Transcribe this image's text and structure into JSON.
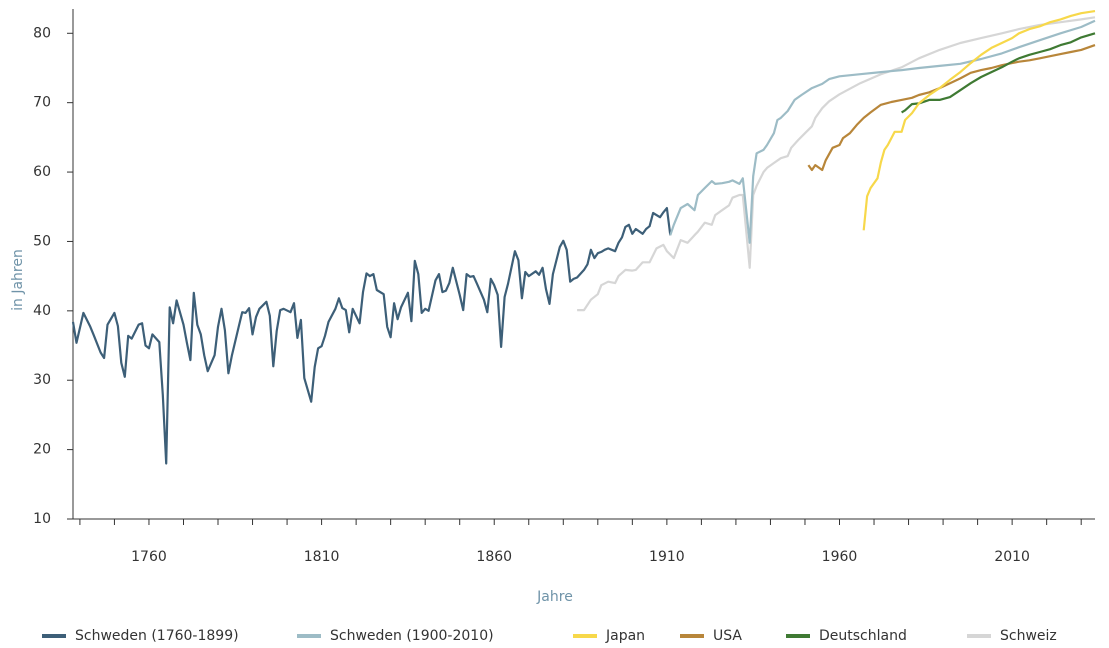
{
  "chart_data": {
    "type": "line",
    "xlabel": "Jahre",
    "ylabel": "in Jahren",
    "xlim": [
      1738,
      2034
    ],
    "ylim": [
      10,
      83.5
    ],
    "xticks": [
      1760,
      1810,
      1860,
      1910,
      1960,
      2010
    ],
    "xticks_minor": [
      1740,
      1750,
      1770,
      1780,
      1790,
      1800,
      1820,
      1830,
      1840,
      1850,
      1870,
      1880,
      1890,
      1900,
      1920,
      1930,
      1940,
      1950,
      1970,
      1980,
      1990,
      2000,
      2020,
      2030
    ],
    "yticks": [
      10,
      20,
      30,
      40,
      50,
      60,
      70,
      80
    ],
    "legend": "bottom",
    "series": [
      {
        "name": "Schweden (1760-1899)",
        "color": "#3d5f78",
        "x": [
          1738,
          1739,
          1741,
          1743,
          1744,
          1746,
          1747,
          1748,
          1750,
          1751,
          1752,
          1753,
          1754,
          1755,
          1757,
          1758,
          1759,
          1760,
          1761,
          1763,
          1764,
          1765,
          1766,
          1767,
          1768,
          1770,
          1771,
          1772,
          1773,
          1774,
          1775,
          1776,
          1777,
          1779,
          1780,
          1781,
          1782,
          1783,
          1784,
          1786,
          1787,
          1788,
          1789,
          1790,
          1791,
          1792,
          1794,
          1795,
          1796,
          1797,
          1798,
          1799,
          1801,
          1802,
          1803,
          1804,
          1805,
          1807,
          1808,
          1809,
          1810,
          1811,
          1812,
          1814,
          1815,
          1816,
          1817,
          1818,
          1819,
          1821,
          1822,
          1823,
          1824,
          1825,
          1826,
          1828,
          1829,
          1830,
          1831,
          1832,
          1833,
          1835,
          1836,
          1837,
          1838,
          1839,
          1840,
          1841,
          1843,
          1844,
          1845,
          1846,
          1847,
          1848,
          1850,
          1851,
          1852,
          1853,
          1854,
          1855,
          1857,
          1858,
          1859,
          1860,
          1861,
          1862,
          1863,
          1864,
          1866,
          1867,
          1868,
          1869,
          1870,
          1872,
          1873,
          1874,
          1875,
          1876,
          1877,
          1879,
          1880,
          1881,
          1882,
          1883,
          1884,
          1886,
          1887,
          1888,
          1889,
          1890,
          1891,
          1892,
          1893,
          1895,
          1896,
          1897,
          1898,
          1899,
          1900,
          1901,
          1903,
          1904,
          1905,
          1906,
          1908,
          1909,
          1910,
          1911
        ],
        "values": [
          38.4,
          35.4,
          39.7,
          37.7,
          36.5,
          34,
          33.2,
          38,
          39.7,
          37.8,
          32.5,
          30.5,
          36.4,
          36,
          38,
          38.2,
          35,
          34.6,
          36.6,
          35.5,
          27.9,
          18,
          40.5,
          38.2,
          41.5,
          38,
          35.4,
          32.9,
          42.6,
          38,
          36.6,
          33.6,
          31.3,
          33.6,
          37.7,
          40.3,
          37.2,
          31,
          33.5,
          37.7,
          39.8,
          39.7,
          40.4,
          36.6,
          39.1,
          40.3,
          41.3,
          39.3,
          32,
          37.1,
          40.1,
          40.3,
          39.8,
          41.1,
          36.1,
          38.7,
          30.3,
          26.9,
          31.9,
          34.6,
          34.9,
          36.4,
          38.4,
          40.3,
          41.8,
          40.4,
          40.1,
          36.9,
          40.3,
          38.2,
          42.7,
          45.4,
          45,
          45.3,
          43,
          42.4,
          37.7,
          36.2,
          41.1,
          38.8,
          40.5,
          42.6,
          38.5,
          47.2,
          45.3,
          39.7,
          40.3,
          40,
          44.4,
          45.3,
          42.7,
          42.9,
          44,
          46.2,
          42.3,
          40.1,
          45.3,
          44.9,
          45,
          43.9,
          41.6,
          39.8,
          44.6,
          43.7,
          42.3,
          34.8,
          42,
          43.9,
          48.6,
          47.3,
          41.8,
          45.6,
          45,
          45.7,
          45.2,
          46.2,
          43.1,
          41,
          45.3,
          49.2,
          50.1,
          48.8,
          44.2,
          44.6,
          44.8,
          45.9,
          46.7,
          48.8,
          47.6,
          48.3,
          48.5,
          48.8,
          49,
          48.6,
          49.8,
          50.6,
          52.1,
          52.4,
          51.1,
          51.8,
          51.1,
          51.8,
          52.2,
          54.1,
          53.5,
          54.2,
          54.8,
          50.9
        ]
      },
      {
        "name": "Schweden (1900-2010)",
        "color": "#9dbcc6",
        "x": [
          1911,
          1912,
          1914,
          1916,
          1918,
          1919,
          1921,
          1923,
          1924,
          1926,
          1928,
          1929,
          1931,
          1932,
          1934,
          1935,
          1936,
          1938,
          1939,
          1941,
          1942,
          1943,
          1945,
          1947,
          1949,
          1952,
          1955,
          1957,
          1960,
          1966,
          1972,
          1978,
          1983,
          1989,
          1995,
          2001,
          2007,
          2012,
          2018,
          2024,
          2030,
          2034
        ],
        "values": [
          50.9,
          52.4,
          54.8,
          55.4,
          54.5,
          56.7,
          57.7,
          58.7,
          58.3,
          58.4,
          58.6,
          58.8,
          58.3,
          59.1,
          49.8,
          59.4,
          62.7,
          63.2,
          63.9,
          65.6,
          67.5,
          67.8,
          68.8,
          70.4,
          71.1,
          72.1,
          72.7,
          73.4,
          73.8,
          74.1,
          74.4,
          74.7,
          75,
          75.3,
          75.6,
          76.3,
          77.1,
          78,
          79,
          80,
          80.9,
          81.8
        ]
      },
      {
        "name": "Japan",
        "color": "#f7d84a",
        "x": [
          1967,
          1968,
          1969,
          1971,
          1972,
          1973,
          1974,
          1976,
          1978,
          1979,
          1981,
          1983,
          1986,
          1989,
          1992,
          1995,
          1998,
          2001,
          2004,
          2007,
          2010,
          2012,
          2015,
          2018,
          2021,
          2024,
          2027,
          2030,
          2034
        ],
        "values": [
          51.6,
          56.5,
          57.7,
          59.1,
          61.4,
          63.2,
          63.9,
          65.8,
          65.8,
          67.5,
          68.5,
          69.9,
          71.1,
          72.1,
          73.3,
          74.4,
          75.7,
          76.9,
          77.9,
          78.6,
          79.3,
          80,
          80.6,
          81,
          81.6,
          82,
          82.5,
          82.9,
          83.2
        ]
      },
      {
        "name": "USA",
        "color": "#b8863a",
        "x": [
          1951,
          1952,
          1953,
          1955,
          1956,
          1958,
          1960,
          1961,
          1963,
          1965,
          1967,
          1969,
          1972,
          1975,
          1978,
          1981,
          1983,
          1986,
          1989,
          1992,
          1995,
          1998,
          2001,
          2004,
          2007,
          2010,
          2012,
          2015,
          2018,
          2021,
          2024,
          2027,
          2030,
          2034
        ],
        "values": [
          61,
          60.3,
          61,
          60.3,
          61.7,
          63.5,
          63.9,
          64.9,
          65.6,
          66.8,
          67.8,
          68.6,
          69.7,
          70.1,
          70.4,
          70.7,
          71.1,
          71.5,
          72.1,
          72.8,
          73.5,
          74.3,
          74.7,
          75,
          75.4,
          75.7,
          75.9,
          76.1,
          76.4,
          76.7,
          77,
          77.3,
          77.6,
          78.3
        ]
      },
      {
        "name": "Deutschland",
        "color": "#3f7a33",
        "x": [
          1978,
          1979,
          1981,
          1983,
          1986,
          1989,
          1992,
          1995,
          1998,
          2001,
          2004,
          2007,
          2010,
          2012,
          2015,
          2018,
          2021,
          2024,
          2027,
          2030,
          2034
        ],
        "values": [
          68.6,
          68.9,
          69.8,
          69.9,
          70.4,
          70.4,
          70.8,
          71.8,
          72.8,
          73.7,
          74.4,
          75.1,
          75.9,
          76.4,
          76.9,
          77.3,
          77.7,
          78.3,
          78.7,
          79.4,
          80
        ]
      },
      {
        "name": "Schweiz",
        "color": "#d6d6d6",
        "x": [
          1884,
          1886,
          1888,
          1890,
          1891,
          1893,
          1895,
          1896,
          1898,
          1900,
          1901,
          1903,
          1905,
          1907,
          1909,
          1910,
          1912,
          1914,
          1916,
          1918,
          1919,
          1921,
          1923,
          1924,
          1926,
          1928,
          1929,
          1931,
          1932,
          1934,
          1935,
          1936,
          1938,
          1939,
          1941,
          1943,
          1945,
          1946,
          1948,
          1950,
          1952,
          1953,
          1955,
          1957,
          1960,
          1966,
          1972,
          1978,
          1983,
          1989,
          1995,
          2001,
          2007,
          2012,
          2018,
          2024,
          2030,
          2034
        ],
        "values": [
          40.1,
          40.1,
          41.6,
          42.4,
          43.7,
          44.2,
          44,
          45,
          45.9,
          45.8,
          45.9,
          47,
          47,
          49,
          49.5,
          48.6,
          47.6,
          50.2,
          49.8,
          50.9,
          51.4,
          52.7,
          52.4,
          53.8,
          54.5,
          55.2,
          56.3,
          56.7,
          56.7,
          46.2,
          56.7,
          58,
          60,
          60.6,
          61.3,
          62,
          62.3,
          63.5,
          64.6,
          65.6,
          66.6,
          67.8,
          69.2,
          70.2,
          71.2,
          72.8,
          74.1,
          75.1,
          76.4,
          77.6,
          78.6,
          79.3,
          80,
          80.6,
          81.2,
          81.6,
          82,
          82.3
        ]
      }
    ]
  }
}
